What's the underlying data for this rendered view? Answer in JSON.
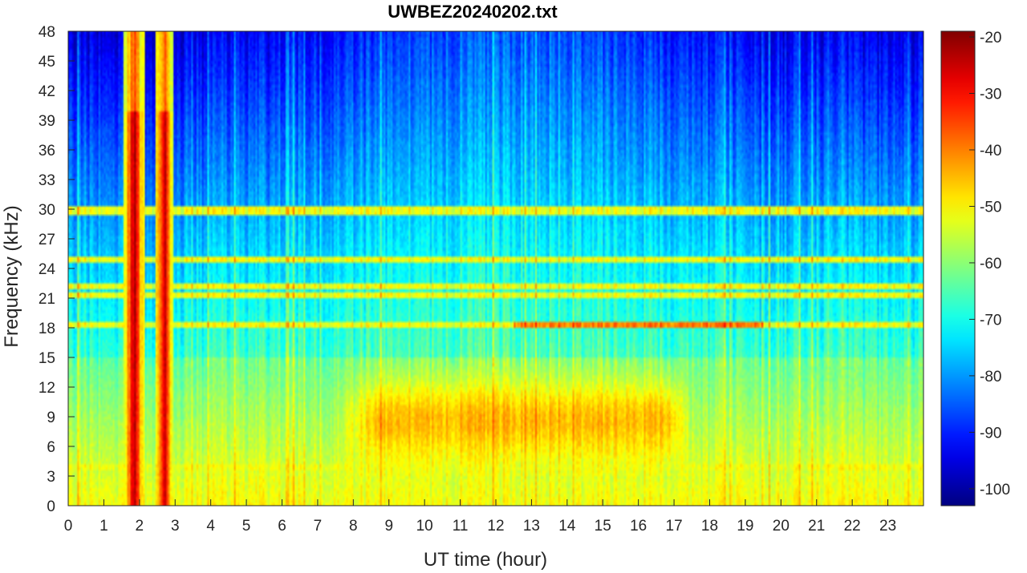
{
  "chart_data": {
    "type": "heatmap",
    "title": "UWBEZ20240202.txt",
    "xlabel": "UT time (hour)",
    "ylabel": "Frequency (kHz)",
    "xlim": [
      0,
      24
    ],
    "ylim": [
      0,
      48
    ],
    "x_ticks": [
      "0",
      "1",
      "2",
      "3",
      "4",
      "5",
      "6",
      "7",
      "8",
      "9",
      "10",
      "11",
      "12",
      "13",
      "14",
      "15",
      "16",
      "17",
      "18",
      "19",
      "20",
      "21",
      "22",
      "23"
    ],
    "y_ticks": [
      "0",
      "3",
      "6",
      "9",
      "12",
      "15",
      "18",
      "21",
      "24",
      "27",
      "30",
      "33",
      "36",
      "39",
      "42",
      "45",
      "48"
    ],
    "colorbar": {
      "colormap": "jet",
      "clim": [
        -103,
        -19
      ],
      "ticks": [
        "-20",
        "-30",
        "-40",
        "-50",
        "-60",
        "-70",
        "-80",
        "-90",
        "-100"
      ]
    },
    "features": {
      "broadband_bursts_hours": [
        [
          1.55,
          2.15
        ],
        [
          2.45,
          2.95
        ]
      ],
      "daytime_enhancement_hours": [
        7.5,
        17.5
      ],
      "daytime_enhancement_khz": [
        5,
        13
      ],
      "transmitter_lines_khz": [
        18.2,
        21.4,
        22.1,
        25.0,
        3.9,
        29.8
      ],
      "background_low_db": -95,
      "background_high_db": -55
    }
  }
}
